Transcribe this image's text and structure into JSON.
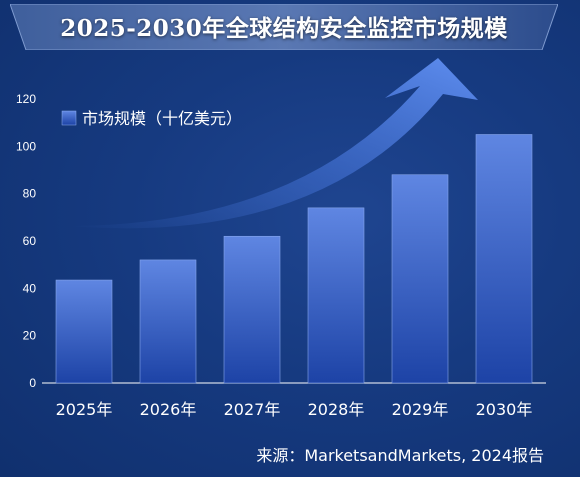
{
  "title": "2025-2030年全球结构安全监控市场规模",
  "source": "来源：MarketsandMarkets, 2024报告",
  "colors": {
    "bar_top": "#5f86e2",
    "bar_bottom": "#1d43a6",
    "background": "#163a80",
    "arrow": "#4d7ee8"
  },
  "chart_data": {
    "type": "bar",
    "categories": [
      "2025年",
      "2026年",
      "2027年",
      "2028年",
      "2029年",
      "2030年"
    ],
    "series": [
      {
        "name": "市场规模（十亿美元）",
        "values": [
          43.5,
          52,
          62,
          74,
          88,
          105
        ]
      }
    ],
    "yticks": [
      0,
      20,
      40,
      60,
      80,
      100,
      120
    ],
    "ylim": [
      0,
      120
    ],
    "xlabel": "",
    "ylabel": "",
    "grid": false,
    "legend_position": "top-left"
  }
}
